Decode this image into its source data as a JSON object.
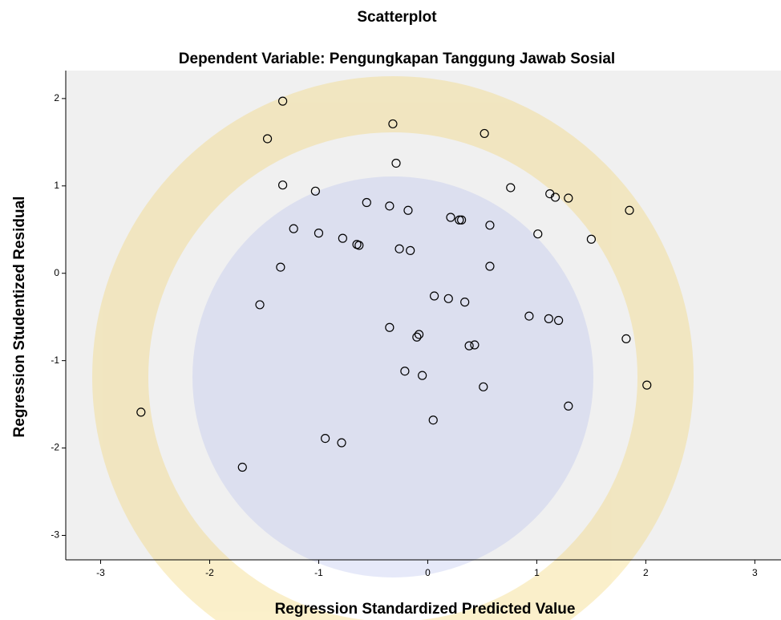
{
  "chart_data": {
    "type": "scatter",
    "title": "Scatterplot",
    "subtitle": "Dependent Variable: Pengungkapan Tanggung Jawab Sosial",
    "x_label": "Regression Standardized Predicted Value",
    "y_label": "Regression Studentized Residual",
    "xlim": [
      -3.32,
      3.24
    ],
    "ylim": [
      -3.28,
      2.32
    ],
    "xticks": [
      -3,
      -2,
      -1,
      0,
      1,
      2,
      3
    ],
    "yticks": [
      -3,
      -2,
      -1,
      0,
      1,
      2
    ],
    "color": "#000000",
    "series": [
      {
        "x": [
          -1.33,
          -0.32,
          0.52,
          -1.47,
          -0.29,
          -1.33,
          -1.03,
          0.76,
          1.12,
          1.17,
          1.29,
          -0.56,
          -0.35,
          -0.18,
          1.85,
          0.21,
          0.29,
          0.31,
          0.57,
          -1.23,
          -1.0,
          1.01,
          -0.78,
          1.5,
          -0.65,
          -0.63,
          -0.26,
          -0.16,
          -1.35,
          0.57,
          0.06,
          0.19,
          0.34,
          -1.54,
          0.93,
          1.11,
          1.2,
          -0.35,
          -0.08,
          -0.1,
          1.82,
          0.38,
          0.43,
          -0.21,
          -0.05,
          2.01,
          0.51,
          1.29,
          -2.63,
          0.05,
          -0.94,
          -0.79,
          -1.7
        ],
        "values": [
          1.97,
          1.71,
          1.6,
          1.54,
          1.26,
          1.01,
          0.94,
          0.98,
          0.91,
          0.87,
          0.86,
          0.81,
          0.77,
          0.72,
          0.72,
          0.64,
          0.61,
          0.61,
          0.55,
          0.51,
          0.46,
          0.45,
          0.4,
          0.39,
          0.33,
          0.32,
          0.28,
          0.26,
          0.07,
          0.08,
          -0.26,
          -0.29,
          -0.33,
          -0.36,
          -0.49,
          -0.52,
          -0.54,
          -0.62,
          -0.7,
          -0.73,
          -0.75,
          -0.83,
          -0.82,
          -1.12,
          -1.17,
          -1.28,
          -1.3,
          -1.52,
          -1.59,
          -1.68,
          -1.89,
          -1.94,
          -2.22
        ]
      }
    ]
  }
}
